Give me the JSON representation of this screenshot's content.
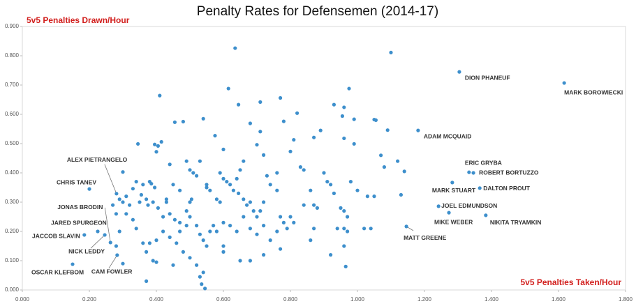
{
  "chart_data": {
    "type": "scatter",
    "title": "Penalty Rates for Defensemen (2014-17)",
    "y_label": "5v5 Penalties Drawn/Hour",
    "x_label": "5v5 Penalties Taken/Hour",
    "xlim": [
      0,
      1.8
    ],
    "ylim": [
      0,
      0.9
    ],
    "xticks": [
      {
        "value": 0,
        "label": "0.000"
      },
      {
        "value": 0.2,
        "label": "0.200"
      },
      {
        "value": 0.4,
        "label": "0.400"
      },
      {
        "value": 0.6,
        "label": "0.600"
      },
      {
        "value": 0.8,
        "label": "0.800"
      },
      {
        "value": 1.0,
        "label": "1.000"
      },
      {
        "value": 1.2,
        "label": "1.200"
      },
      {
        "value": 1.4,
        "label": "1.400"
      },
      {
        "value": 1.6,
        "label": "1.600"
      },
      {
        "value": 1.8,
        "label": "1.800"
      }
    ],
    "yticks": [
      {
        "value": 0,
        "label": "0.000"
      },
      {
        "value": 0.1,
        "label": "0.100"
      },
      {
        "value": 0.2,
        "label": "0.200"
      },
      {
        "value": 0.3,
        "label": "0.300"
      },
      {
        "value": 0.4,
        "label": "0.400"
      },
      {
        "value": 0.5,
        "label": "0.500"
      },
      {
        "value": 0.6,
        "label": "0.600"
      },
      {
        "value": 0.7,
        "label": "0.700"
      },
      {
        "value": 0.8,
        "label": "0.800"
      },
      {
        "value": 0.9,
        "label": "0.900"
      }
    ],
    "series": [
      {
        "color": "#3d8fcc",
        "labels": [
          "MARK BOROWIECKI",
          "DION PHANEUF",
          "ADAM MCQUAID",
          "ERIC GRYBA",
          "ROBERT BORTUZZO",
          "MARK STUART",
          "DALTON PROUT",
          "JOEL EDMUNDSON",
          "MIKE WEBER",
          "NIKITA TRYAMKIN",
          "MATT GREENE",
          "ALEX PIETRANGELO",
          "CHRIS TANEV",
          "JONAS BRODIN",
          "JARED SPURGEON",
          "JACCOB SLAVIN",
          "NICK LEDDY",
          "CAM FOWLER",
          "OSCAR KLEFBOM"
        ],
        "x": [
          1.617,
          1.304,
          1.181,
          1.333,
          1.346,
          1.283,
          1.365,
          1.242,
          1.273,
          1.383,
          1.146,
          0.281,
          0.2,
          0.263,
          0.225,
          0.185,
          0.246,
          0.283,
          0.15
        ],
        "values": [
          0.707,
          0.745,
          0.545,
          0.402,
          0.4,
          0.367,
          0.348,
          0.286,
          0.264,
          0.255,
          0.217,
          0.329,
          0.345,
          0.162,
          0.2,
          0.188,
          0.188,
          0.119,
          0.088
        ]
      },
      {
        "color": "#3d8fcc",
        "x": [
          0.635,
          1.1,
          0.41,
          0.615,
          0.645,
          0.71,
          0.77,
          0.93,
          0.96,
          0.975,
          1.05,
          1.055,
          0.82,
          0.99,
          0.955,
          0.455,
          0.48,
          0.71,
          0.78,
          0.68,
          0.89,
          1.09,
          0.54,
          0.6,
          0.575,
          0.395,
          0.405,
          0.415,
          0.4,
          0.345,
          0.44,
          0.49,
          0.53,
          0.66,
          0.7,
          0.72,
          0.8,
          0.81,
          0.87,
          0.96,
          0.99,
          1.07,
          1.08,
          1.12,
          0.3,
          0.33,
          0.34,
          0.36,
          0.38,
          0.385,
          0.395,
          0.31,
          0.3,
          0.32,
          0.35,
          0.355,
          0.37,
          0.375,
          0.39,
          0.405,
          0.42,
          0.43,
          0.44,
          0.455,
          0.47,
          0.49,
          0.5,
          0.505,
          0.5,
          0.51,
          0.52,
          0.55,
          0.56,
          0.58,
          0.59,
          0.6,
          0.61,
          0.62,
          0.63,
          0.645,
          0.66,
          0.67,
          0.68,
          0.69,
          0.7,
          0.71,
          0.72,
          0.73,
          0.74,
          0.76,
          0.77,
          0.78,
          0.8,
          0.81,
          0.84,
          0.86,
          0.87,
          0.88,
          0.9,
          0.91,
          0.92,
          0.93,
          0.95,
          0.96,
          0.97,
          0.98,
          1.0,
          1.03,
          1.05,
          1.13,
          1.14,
          0.58,
          0.6,
          0.62,
          0.64,
          0.66,
          0.68,
          0.7,
          0.72,
          0.74,
          0.77,
          0.86,
          0.87,
          0.92,
          0.94,
          0.96,
          0.97,
          0.96,
          0.965,
          1.02,
          1.04,
          0.52,
          0.53,
          0.54,
          0.55,
          0.56,
          0.57,
          0.5,
          0.49,
          0.47,
          0.46,
          0.44,
          0.42,
          0.4,
          0.38,
          0.37,
          0.36,
          0.39,
          0.4,
          0.37,
          0.3,
          0.28,
          0.29,
          0.28,
          0.27,
          0.29,
          0.31,
          0.33,
          0.34,
          0.45,
          0.48,
          0.5,
          0.52,
          0.53,
          0.54,
          0.535,
          0.545,
          0.6,
          0.6,
          0.65,
          0.68,
          0.72,
          0.76,
          0.79,
          0.83,
          0.84,
          0.76,
          0.64,
          0.65,
          0.59,
          0.55,
          0.47,
          0.45,
          0.43
        ],
        "values": [
          0.826,
          0.811,
          0.664,
          0.688,
          0.633,
          0.642,
          0.656,
          0.633,
          0.624,
          0.688,
          0.582,
          0.58,
          0.604,
          0.583,
          0.594,
          0.573,
          0.575,
          0.541,
          0.576,
          0.569,
          0.545,
          0.546,
          0.585,
          0.48,
          0.527,
          0.497,
          0.492,
          0.506,
          0.472,
          0.499,
          0.429,
          0.44,
          0.44,
          0.44,
          0.496,
          0.461,
          0.473,
          0.513,
          0.521,
          0.518,
          0.499,
          0.46,
          0.42,
          0.44,
          0.403,
          0.346,
          0.37,
          0.36,
          0.37,
          0.363,
          0.35,
          0.32,
          0.3,
          0.29,
          0.3,
          0.325,
          0.31,
          0.29,
          0.3,
          0.28,
          0.25,
          0.3,
          0.26,
          0.24,
          0.23,
          0.27,
          0.3,
          0.31,
          0.41,
          0.4,
          0.39,
          0.35,
          0.34,
          0.31,
          0.3,
          0.38,
          0.37,
          0.36,
          0.34,
          0.33,
          0.31,
          0.29,
          0.3,
          0.27,
          0.25,
          0.27,
          0.3,
          0.39,
          0.36,
          0.34,
          0.25,
          0.23,
          0.25,
          0.23,
          0.29,
          0.34,
          0.29,
          0.28,
          0.4,
          0.37,
          0.36,
          0.33,
          0.28,
          0.27,
          0.25,
          0.37,
          0.34,
          0.32,
          0.32,
          0.325,
          0.405,
          0.2,
          0.23,
          0.22,
          0.2,
          0.25,
          0.21,
          0.19,
          0.22,
          0.17,
          0.14,
          0.17,
          0.21,
          0.12,
          0.21,
          0.21,
          0.2,
          0.15,
          0.08,
          0.21,
          0.21,
          0.22,
          0.19,
          0.17,
          0.15,
          0.2,
          0.22,
          0.25,
          0.22,
          0.2,
          0.16,
          0.18,
          0.2,
          0.17,
          0.16,
          0.13,
          0.16,
          0.1,
          0.095,
          0.03,
          0.09,
          0.15,
          0.2,
          0.26,
          0.29,
          0.31,
          0.26,
          0.24,
          0.21,
          0.085,
          0.13,
          0.11,
          0.085,
          0.045,
          0.06,
          0.02,
          0.005,
          0.13,
          0.15,
          0.1,
          0.1,
          0.12,
          0.2,
          0.21,
          0.42,
          0.41,
          0.4,
          0.38,
          0.41,
          0.4,
          0.36,
          0.34,
          0.36,
          0.31
        ]
      }
    ]
  }
}
